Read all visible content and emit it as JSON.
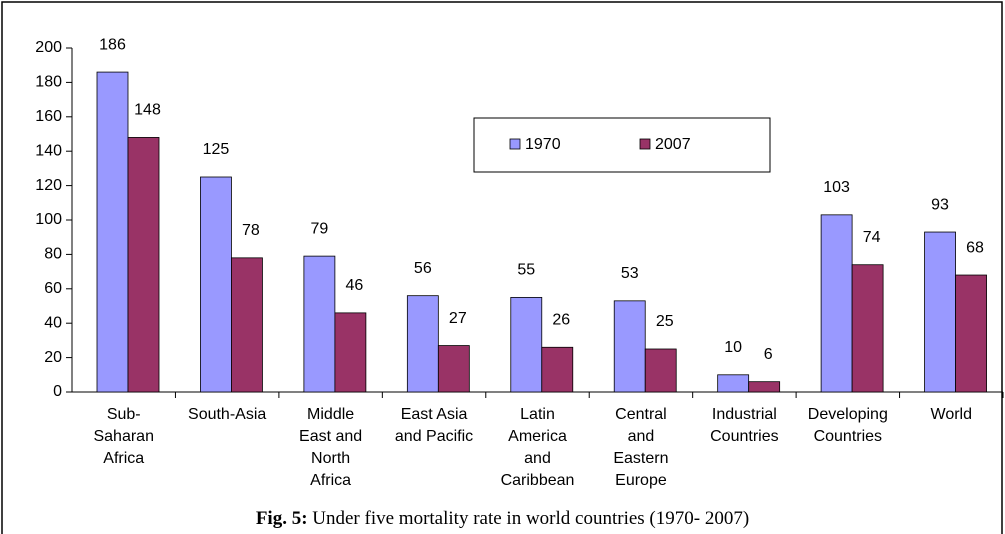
{
  "chart_data": {
    "type": "bar",
    "categories": [
      "Sub-Saharan Africa",
      "South-Asia",
      "Middle East and North Africa",
      "East Asia and Pacific",
      "Latin America and Caribbean",
      "Central and Eastern Europe",
      "Industrial Countries",
      "Developing Countries",
      "World"
    ],
    "series": [
      {
        "name": "1970",
        "color": "#9999ff",
        "values": [
          186,
          125,
          79,
          56,
          55,
          53,
          10,
          103,
          93
        ]
      },
      {
        "name": "2007",
        "color": "#993366",
        "values": [
          148,
          78,
          46,
          27,
          26,
          25,
          6,
          74,
          68
        ]
      }
    ],
    "ylim": [
      0,
      200
    ],
    "yticks": [
      0,
      20,
      40,
      60,
      80,
      100,
      120,
      140,
      160,
      180,
      200
    ],
    "grid": false,
    "legend": "top",
    "caption_label": "Fig. 5:",
    "caption": "Under five mortality rate in world countries (1970- 2007)"
  }
}
